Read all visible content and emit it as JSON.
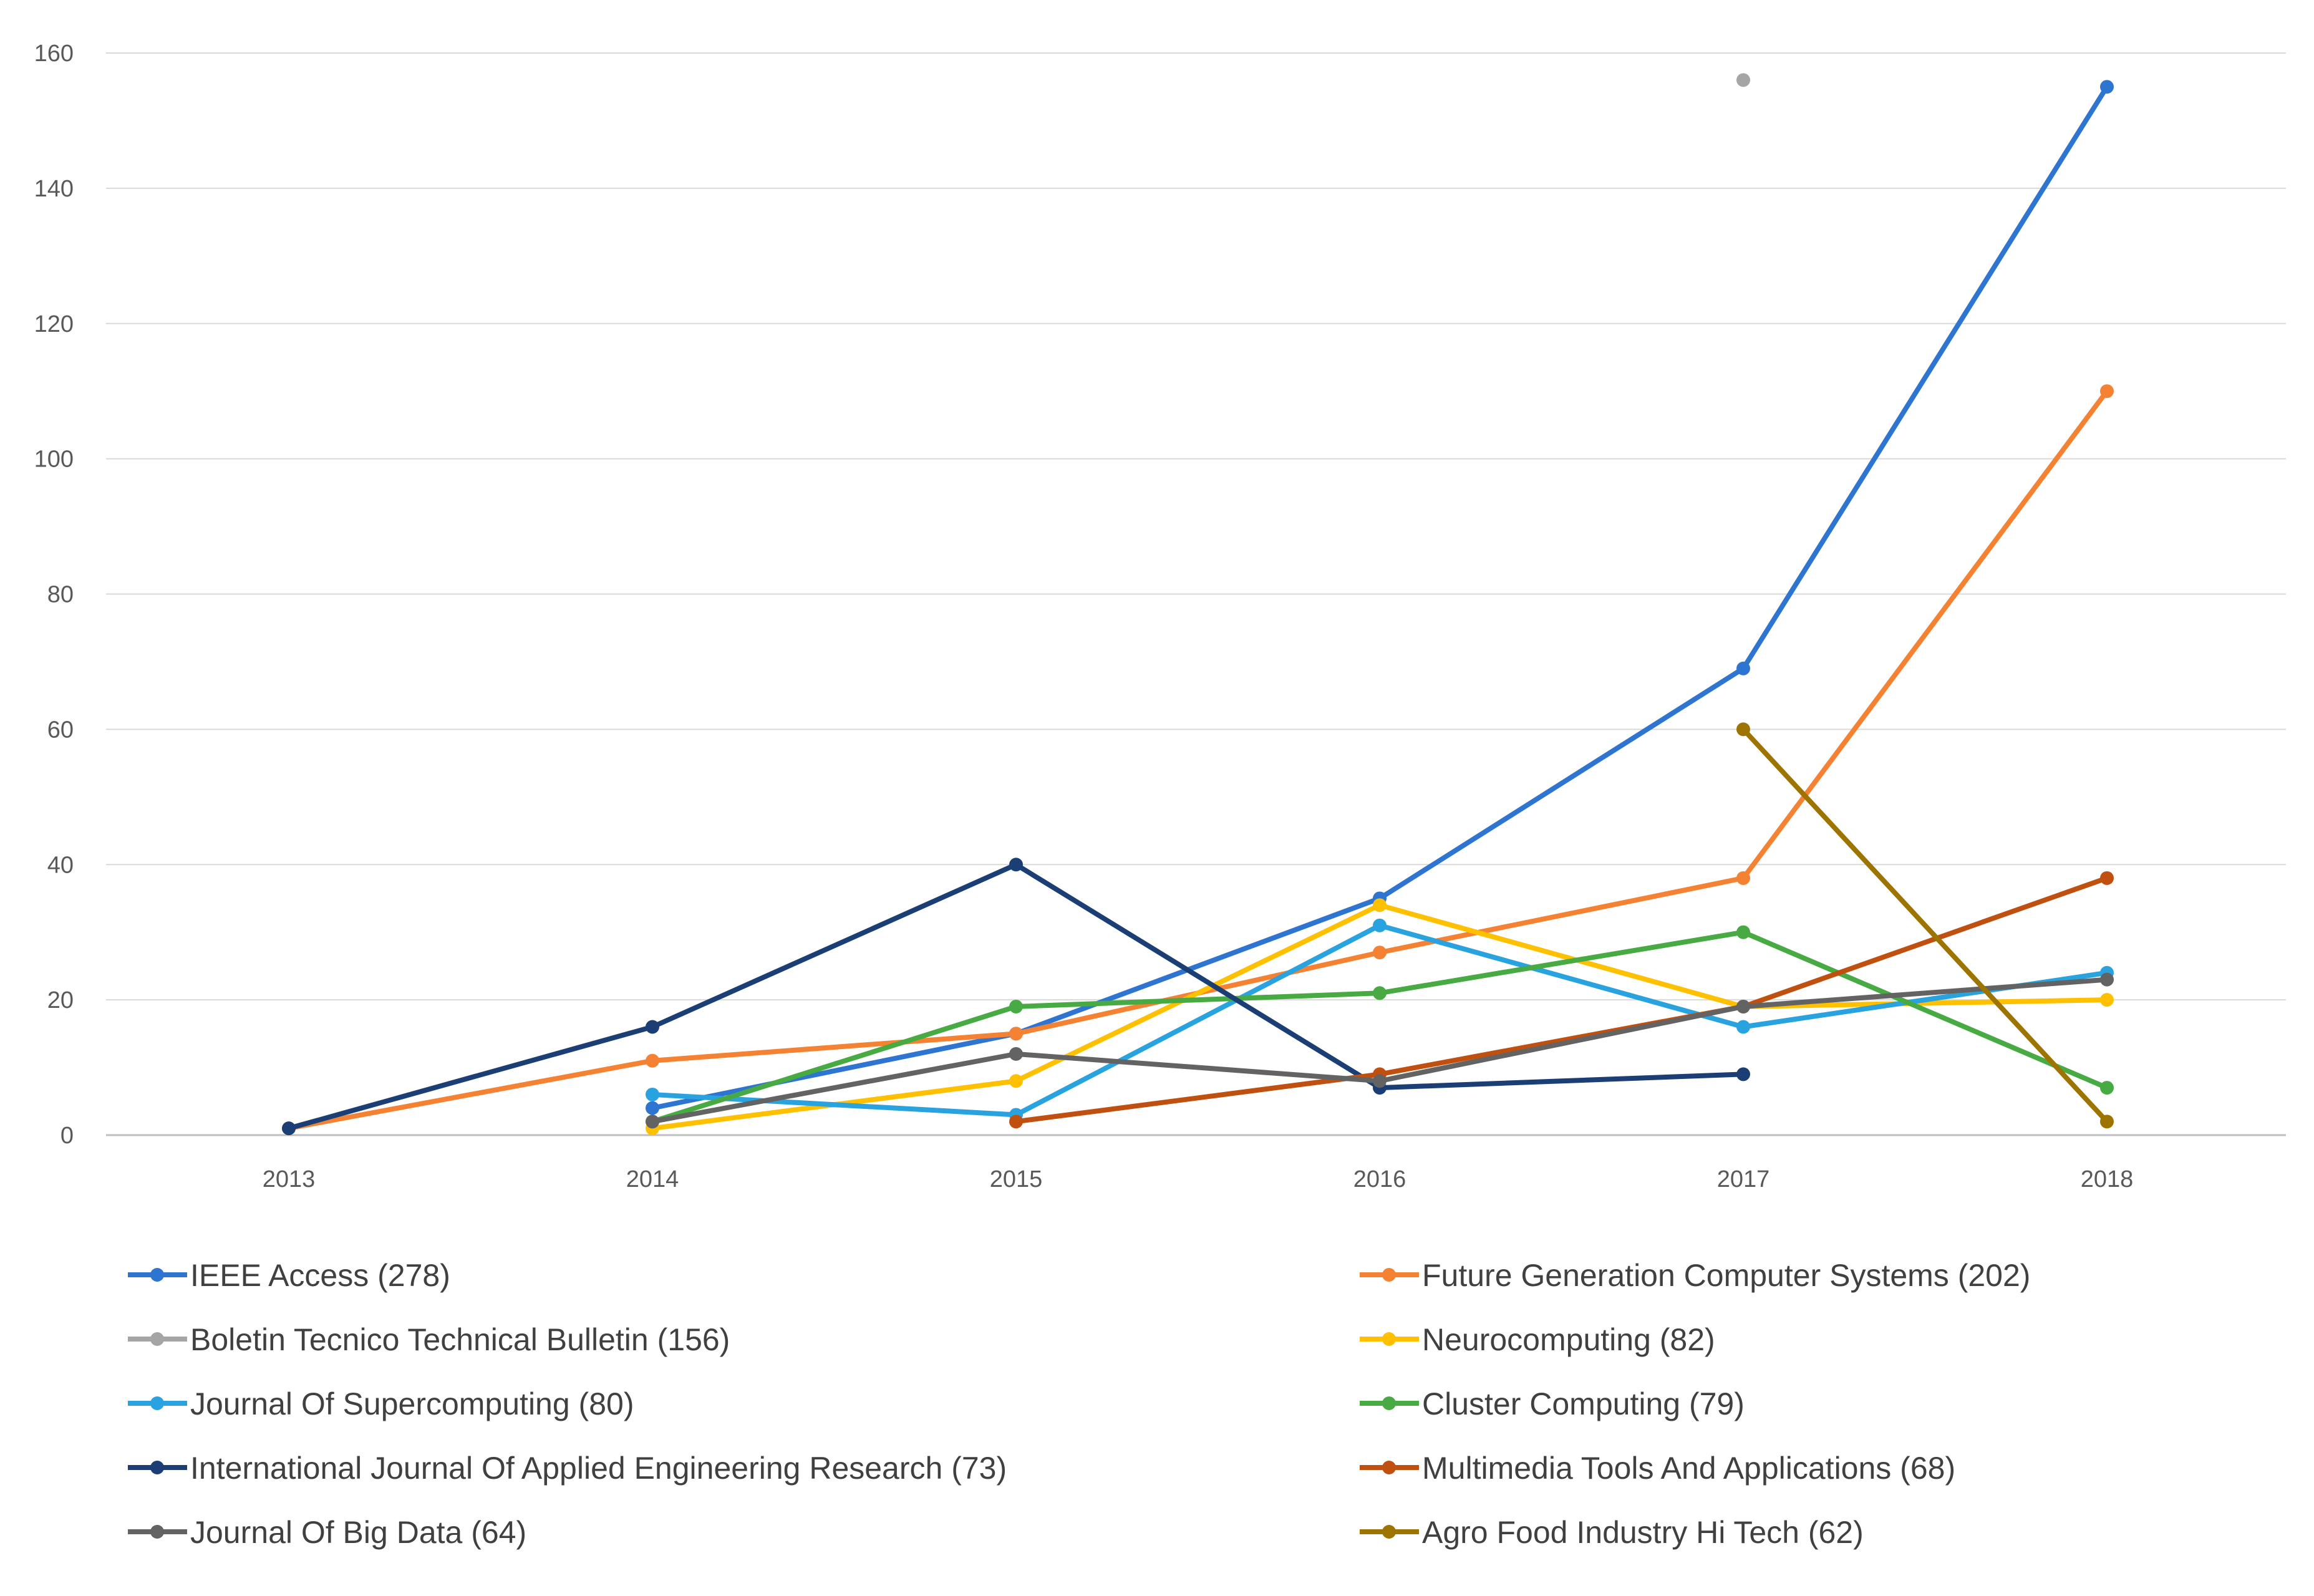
{
  "chart_data": {
    "type": "line",
    "title": "",
    "xlabel": "",
    "ylabel": "",
    "x": [
      "2013",
      "2014",
      "2015",
      "2016",
      "2017",
      "2018"
    ],
    "ylim": [
      0,
      160
    ],
    "yticks": [
      0,
      20,
      40,
      60,
      80,
      100,
      120,
      140,
      160
    ],
    "grid": true,
    "legend_position": "bottom",
    "series": [
      {
        "name": "IEEE Access (278)",
        "color": "#2E75D2",
        "values": [
          null,
          4,
          15,
          35,
          69,
          155
        ]
      },
      {
        "name": "Future Generation Computer Systems (202)",
        "color": "#F58233",
        "values": [
          1,
          11,
          15,
          27,
          38,
          110
        ]
      },
      {
        "name": "Boletin Tecnico Technical Bulletin (156)",
        "color": "#A5A5A5",
        "values": [
          null,
          null,
          null,
          null,
          156,
          null
        ]
      },
      {
        "name": "Neurocomputing (82)",
        "color": "#FFC000",
        "values": [
          null,
          1,
          8,
          34,
          19,
          20
        ]
      },
      {
        "name": "Journal Of Supercomputing (80)",
        "color": "#29A3E0",
        "values": [
          null,
          6,
          3,
          31,
          16,
          24
        ]
      },
      {
        "name": "Cluster Computing (79)",
        "color": "#47AA42",
        "values": [
          null,
          2,
          19,
          21,
          30,
          7
        ]
      },
      {
        "name": "International Journal Of Applied Engineering Research (73)",
        "color": "#1B3F74",
        "values": [
          1,
          16,
          40,
          7,
          9,
          null
        ]
      },
      {
        "name": "Multimedia Tools And Applications (68)",
        "color": "#C0500F",
        "values": [
          null,
          null,
          2,
          9,
          19,
          38
        ]
      },
      {
        "name": "Journal Of Big Data (64)",
        "color": "#636363",
        "values": [
          null,
          2,
          12,
          8,
          19,
          23
        ]
      },
      {
        "name": "Agro Food Industry Hi Tech (62)",
        "color": "#9E7400",
        "values": [
          null,
          null,
          null,
          null,
          60,
          2
        ]
      }
    ]
  }
}
